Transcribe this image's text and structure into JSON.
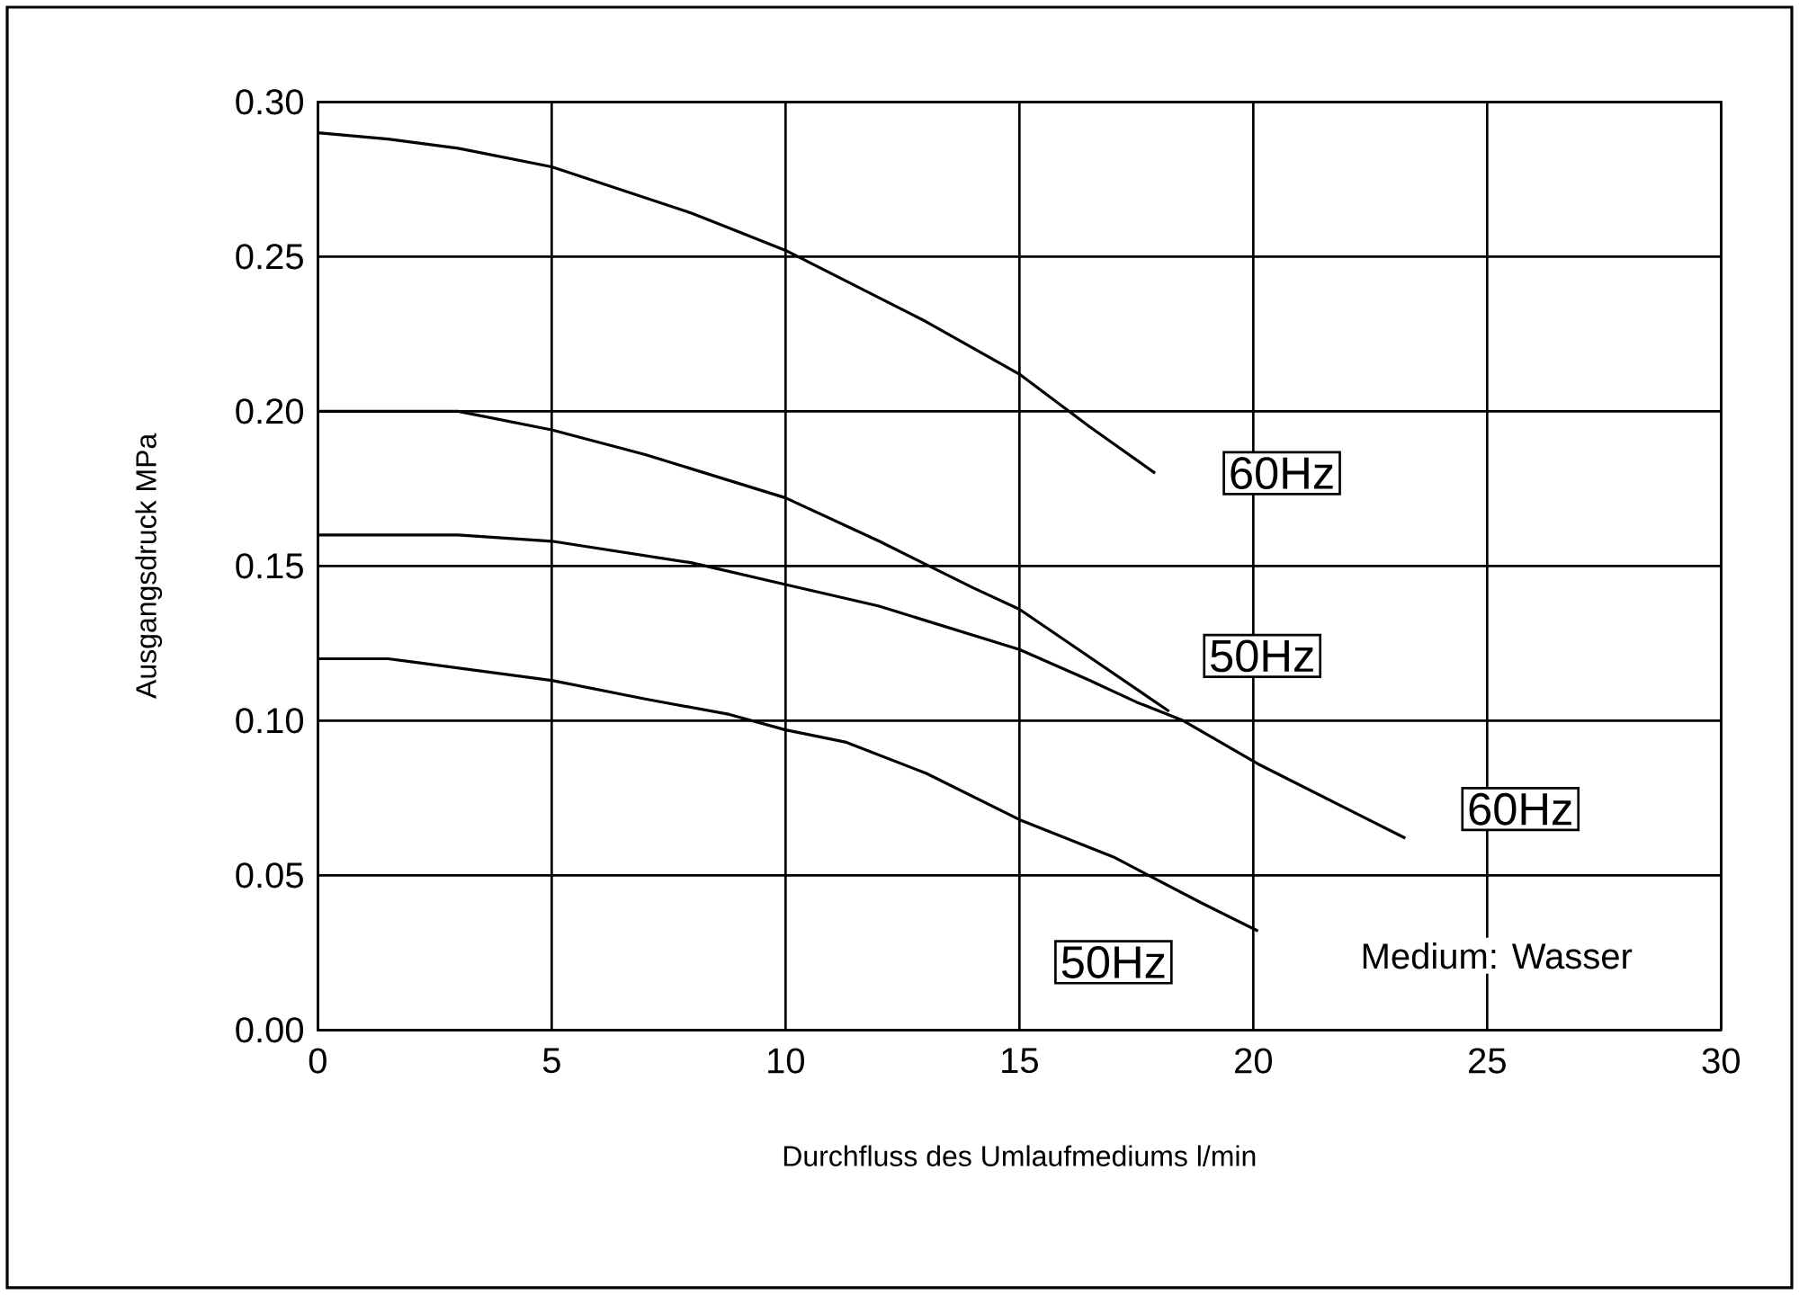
{
  "chart_data": {
    "type": "line",
    "xlabel": "Durchfluss des Umlaufmediums l/min",
    "ylabel": "Ausgangsdruck MPa",
    "series": [
      {
        "color": "#000000",
        "x": [
          0,
          1.5,
          3,
          5,
          8,
          10,
          13,
          15,
          16.5,
          17.9
        ],
        "values": [
          0.29,
          0.288,
          0.285,
          0.279,
          0.264,
          0.252,
          0.229,
          0.212,
          0.195,
          0.18
        ]
      },
      {
        "color": "#000000",
        "x": [
          0,
          2,
          3,
          5,
          7,
          10,
          12,
          14,
          15,
          18.2
        ],
        "values": [
          0.2,
          0.2,
          0.2,
          0.194,
          0.186,
          0.172,
          0.158,
          0.143,
          0.136,
          0.103
        ]
      },
      {
        "color": "#000000",
        "x": [
          0,
          3,
          5,
          8,
          10,
          12,
          15,
          16.5,
          17.5,
          18.5,
          20.1,
          23.25
        ],
        "values": [
          0.16,
          0.16,
          0.158,
          0.151,
          0.144,
          0.137,
          0.123,
          0.113,
          0.106,
          0.1,
          0.086,
          0.062
        ]
      },
      {
        "color": "#000000",
        "x": [
          0,
          1.5,
          2,
          5,
          7,
          8.8,
          10,
          11.3,
          13,
          15,
          17,
          18.9,
          20.1
        ],
        "values": [
          0.12,
          0.12,
          0.119,
          0.113,
          0.107,
          0.102,
          0.097,
          0.093,
          0.083,
          0.068,
          0.056,
          0.041,
          0.032
        ]
      }
    ],
    "xlim": [
      0,
      30
    ],
    "xticks": [
      0,
      5,
      10,
      15,
      20,
      25,
      30
    ],
    "ylim": [
      0,
      0.3
    ],
    "yticks": [
      {
        "value": 0,
        "label": "0.00"
      },
      {
        "value": 0.05,
        "label": "0.05"
      },
      {
        "value": 0.1,
        "label": "0.10"
      },
      {
        "value": 0.15,
        "label": "0.15"
      },
      {
        "value": 0.2,
        "label": "0.20"
      },
      {
        "value": 0.25,
        "label": "0.25"
      },
      {
        "value": 0.3,
        "label": "0.30"
      }
    ],
    "grid": true,
    "marker": "none",
    "line_style": "solid",
    "legend": false,
    "annotations": [
      "60Hz",
      "50Hz",
      "60Hz",
      "50Hz",
      "Medium: Wasser"
    ]
  }
}
